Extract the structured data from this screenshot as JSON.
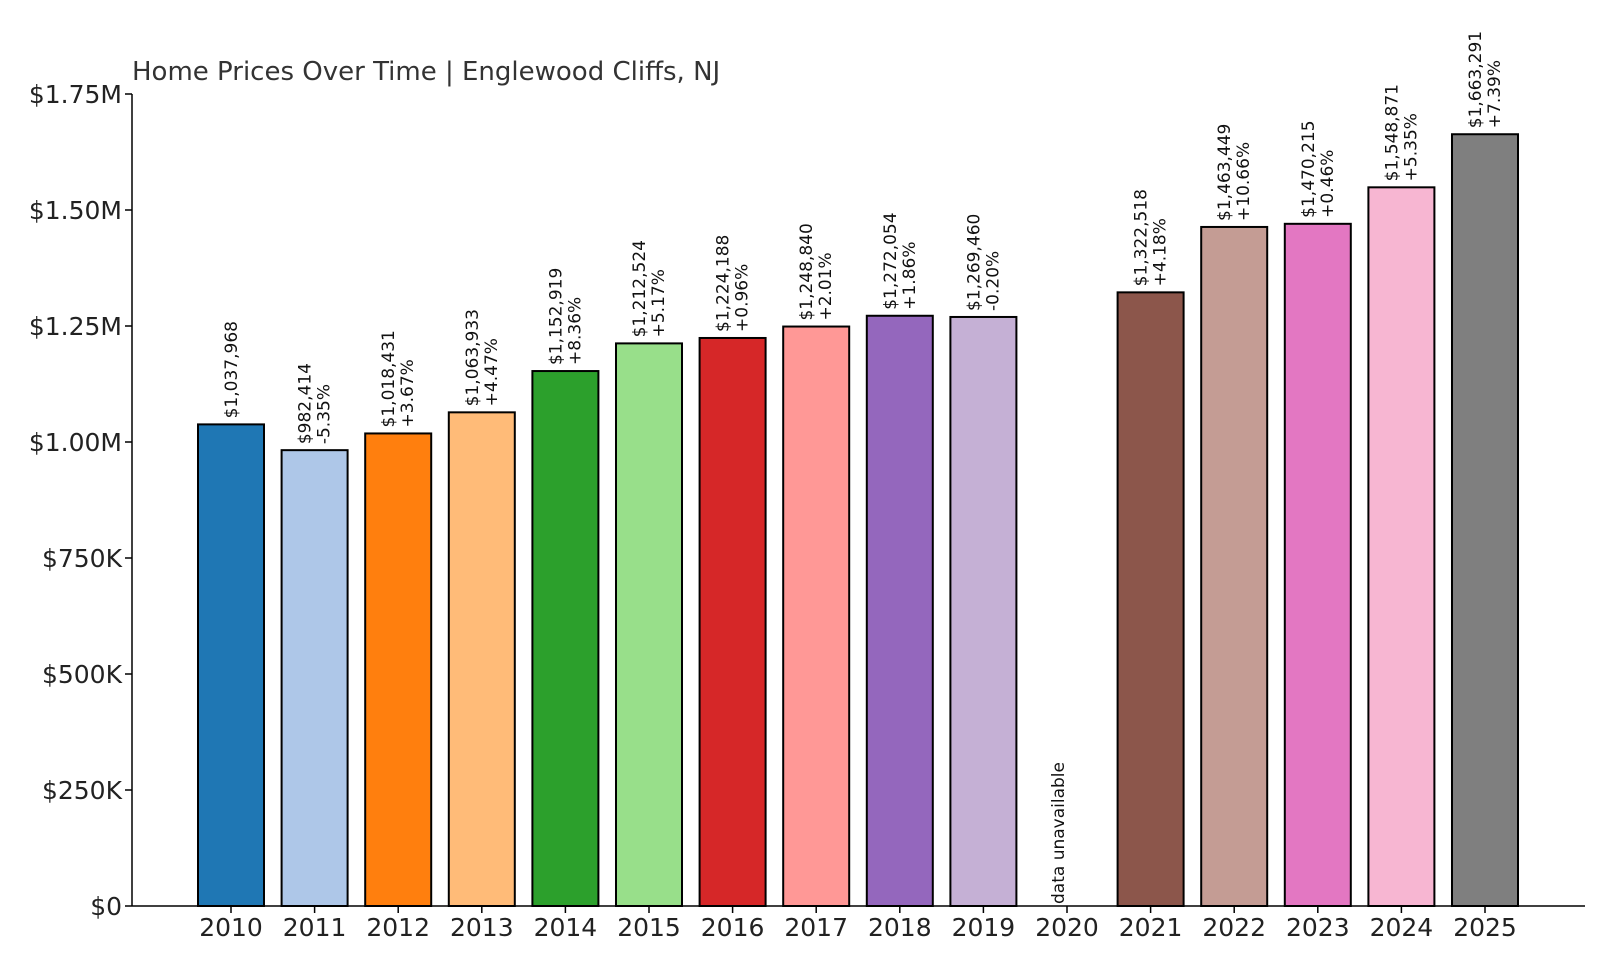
{
  "chart_data": {
    "type": "bar",
    "title": "Home Prices Over Time | Englewood Cliffs, NJ",
    "xlabel": "",
    "ylabel": "",
    "ylim": [
      0,
      1750000
    ],
    "yticks": [
      0,
      250000,
      500000,
      750000,
      1000000,
      1250000,
      1500000,
      1750000
    ],
    "ytick_labels": [
      "$0",
      "$250K",
      "$500K",
      "$750K",
      "$1.00M",
      "$1.25M",
      "$1.50M",
      "$1.75M"
    ],
    "grid": false,
    "legend": "none",
    "categories": [
      "2010",
      "2011",
      "2012",
      "2013",
      "2014",
      "2015",
      "2016",
      "2017",
      "2018",
      "2019",
      "2020",
      "2021",
      "2022",
      "2023",
      "2024",
      "2025"
    ],
    "values": [
      1037968,
      982414,
      1018431,
      1063933,
      1152919,
      1212524,
      1224188,
      1248840,
      1272054,
      1269460,
      null,
      1322518,
      1463449,
      1470215,
      1548871,
      1663291
    ],
    "value_labels": [
      "$1,037,968",
      "$982,414",
      "$1,018,431",
      "$1,063,933",
      "$1,152,919",
      "$1,212,524",
      "$1,224,188",
      "$1,248,840",
      "$1,272,054",
      "$1,269,460",
      "",
      "$1,322,518",
      "$1,463,449",
      "$1,470,215",
      "$1,548,871",
      "$1,663,291"
    ],
    "change_labels": [
      "",
      "-5.35%",
      "+3.67%",
      "+4.47%",
      "+8.36%",
      "+5.17%",
      "+0.96%",
      "+2.01%",
      "+1.86%",
      "-0.20%",
      "",
      "+4.18%",
      "+10.66%",
      "+0.46%",
      "+5.35%",
      "+7.39%"
    ],
    "missing_label": "data unavailable",
    "colors": [
      "#1f77b4",
      "#aec7e8",
      "#ff7f0e",
      "#ffbb78",
      "#2ca02c",
      "#98df8a",
      "#d62728",
      "#ff9896",
      "#9467bd",
      "#c5b0d5",
      "#8c564b",
      "#8c564b",
      "#c49c94",
      "#e377c2",
      "#f7b6d2",
      "#7f7f7f"
    ]
  }
}
